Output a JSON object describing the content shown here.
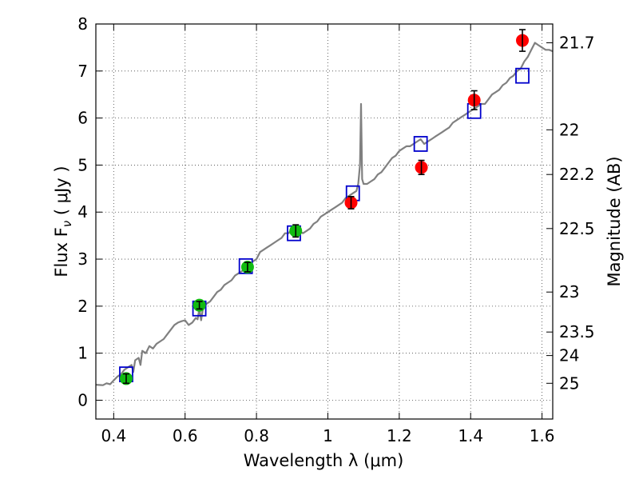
{
  "chart_data": {
    "type": "scatter",
    "xlabel": "Wavelength  λ (μm)",
    "ylabel": "Flux  F",
    "ylabel_sub": "ν",
    "ylabel_unit": "  ( μJy )",
    "ylabel_right": "Magnitude (AB)",
    "xlim": [
      0.35,
      1.63
    ],
    "ylim": [
      -0.4,
      8
    ],
    "grid": true,
    "x_ticks": [
      {
        "value": 0.4,
        "label": "0.4"
      },
      {
        "value": 0.6,
        "label": "0.6"
      },
      {
        "value": 0.8,
        "label": "0.8"
      },
      {
        "value": 1.0,
        "label": "1"
      },
      {
        "value": 1.2,
        "label": "1.2"
      },
      {
        "value": 1.4,
        "label": "1.4"
      },
      {
        "value": 1.6,
        "label": "1.6"
      }
    ],
    "y_ticks": [
      {
        "value": 0,
        "label": "0"
      },
      {
        "value": 1,
        "label": "1"
      },
      {
        "value": 2,
        "label": "2"
      },
      {
        "value": 3,
        "label": "3"
      },
      {
        "value": 4,
        "label": "4"
      },
      {
        "value": 5,
        "label": "5"
      },
      {
        "value": 6,
        "label": "6"
      },
      {
        "value": 7,
        "label": "7"
      },
      {
        "value": 8,
        "label": "8"
      }
    ],
    "right_ticks": [
      {
        "flux": 7.6,
        "label": "21.7"
      },
      {
        "flux": 5.75,
        "label": "22"
      },
      {
        "flux": 4.8,
        "label": "22.2"
      },
      {
        "flux": 3.65,
        "label": "22.5"
      },
      {
        "flux": 2.3,
        "label": "23"
      },
      {
        "flux": 1.45,
        "label": "23.5"
      },
      {
        "flux": 0.95,
        "label": "24"
      },
      {
        "flux": 0.36,
        "label": "25"
      }
    ],
    "series": [
      {
        "kind": "spectrum",
        "color": "#808080",
        "points": [
          [
            0.35,
            0.33
          ],
          [
            0.37,
            0.32
          ],
          [
            0.38,
            0.36
          ],
          [
            0.39,
            0.34
          ],
          [
            0.4,
            0.42
          ],
          [
            0.41,
            0.5
          ],
          [
            0.42,
            0.55
          ],
          [
            0.43,
            0.65
          ],
          [
            0.44,
            0.7
          ],
          [
            0.45,
            0.75
          ],
          [
            0.455,
            0.6
          ],
          [
            0.46,
            0.85
          ],
          [
            0.47,
            0.9
          ],
          [
            0.475,
            0.75
          ],
          [
            0.48,
            1.05
          ],
          [
            0.49,
            1.0
          ],
          [
            0.5,
            1.15
          ],
          [
            0.51,
            1.1
          ],
          [
            0.52,
            1.2
          ],
          [
            0.53,
            1.25
          ],
          [
            0.54,
            1.3
          ],
          [
            0.55,
            1.4
          ],
          [
            0.56,
            1.5
          ],
          [
            0.57,
            1.6
          ],
          [
            0.58,
            1.65
          ],
          [
            0.59,
            1.68
          ],
          [
            0.6,
            1.7
          ],
          [
            0.61,
            1.6
          ],
          [
            0.62,
            1.65
          ],
          [
            0.63,
            1.75
          ],
          [
            0.635,
            1.72
          ],
          [
            0.64,
            1.95
          ],
          [
            0.645,
            1.7
          ],
          [
            0.65,
            1.95
          ],
          [
            0.66,
            2.05
          ],
          [
            0.67,
            2.1
          ],
          [
            0.68,
            2.2
          ],
          [
            0.69,
            2.3
          ],
          [
            0.7,
            2.35
          ],
          [
            0.71,
            2.45
          ],
          [
            0.72,
            2.5
          ],
          [
            0.73,
            2.55
          ],
          [
            0.74,
            2.65
          ],
          [
            0.75,
            2.7
          ],
          [
            0.76,
            2.75
          ],
          [
            0.77,
            2.85
          ],
          [
            0.78,
            2.88
          ],
          [
            0.79,
            2.95
          ],
          [
            0.8,
            3.0
          ],
          [
            0.81,
            3.15
          ],
          [
            0.82,
            3.2
          ],
          [
            0.83,
            3.25
          ],
          [
            0.84,
            3.3
          ],
          [
            0.85,
            3.35
          ],
          [
            0.86,
            3.4
          ],
          [
            0.87,
            3.45
          ],
          [
            0.88,
            3.55
          ],
          [
            0.89,
            3.55
          ],
          [
            0.9,
            3.65
          ],
          [
            0.91,
            3.62
          ],
          [
            0.92,
            3.6
          ],
          [
            0.93,
            3.55
          ],
          [
            0.94,
            3.6
          ],
          [
            0.95,
            3.65
          ],
          [
            0.96,
            3.75
          ],
          [
            0.97,
            3.8
          ],
          [
            0.98,
            3.9
          ],
          [
            0.99,
            3.95
          ],
          [
            1.0,
            4.0
          ],
          [
            1.01,
            4.05
          ],
          [
            1.02,
            4.1
          ],
          [
            1.03,
            4.15
          ],
          [
            1.04,
            4.2
          ],
          [
            1.05,
            4.3
          ],
          [
            1.06,
            4.35
          ],
          [
            1.07,
            4.4
          ],
          [
            1.08,
            4.45
          ],
          [
            1.085,
            4.6
          ],
          [
            1.09,
            5.0
          ],
          [
            1.093,
            6.3
          ],
          [
            1.096,
            4.7
          ],
          [
            1.1,
            4.6
          ],
          [
            1.11,
            4.6
          ],
          [
            1.12,
            4.65
          ],
          [
            1.13,
            4.7
          ],
          [
            1.14,
            4.8
          ],
          [
            1.15,
            4.85
          ],
          [
            1.16,
            4.95
          ],
          [
            1.17,
            5.05
          ],
          [
            1.18,
            5.15
          ],
          [
            1.19,
            5.2
          ],
          [
            1.2,
            5.3
          ],
          [
            1.21,
            5.35
          ],
          [
            1.22,
            5.4
          ],
          [
            1.23,
            5.4
          ],
          [
            1.24,
            5.45
          ],
          [
            1.25,
            5.5
          ],
          [
            1.26,
            5.55
          ],
          [
            1.27,
            5.45
          ],
          [
            1.28,
            5.5
          ],
          [
            1.29,
            5.55
          ],
          [
            1.3,
            5.6
          ],
          [
            1.31,
            5.65
          ],
          [
            1.32,
            5.7
          ],
          [
            1.33,
            5.75
          ],
          [
            1.34,
            5.8
          ],
          [
            1.35,
            5.9
          ],
          [
            1.36,
            5.95
          ],
          [
            1.37,
            6.0
          ],
          [
            1.38,
            6.05
          ],
          [
            1.39,
            6.1
          ],
          [
            1.4,
            6.15
          ],
          [
            1.41,
            6.2
          ],
          [
            1.42,
            6.25
          ],
          [
            1.43,
            6.3
          ],
          [
            1.44,
            6.3
          ],
          [
            1.45,
            6.4
          ],
          [
            1.46,
            6.5
          ],
          [
            1.47,
            6.55
          ],
          [
            1.48,
            6.6
          ],
          [
            1.49,
            6.7
          ],
          [
            1.5,
            6.75
          ],
          [
            1.51,
            6.85
          ],
          [
            1.52,
            6.9
          ],
          [
            1.53,
            7.0
          ],
          [
            1.54,
            7.05
          ],
          [
            1.55,
            7.2
          ],
          [
            1.56,
            7.3
          ],
          [
            1.57,
            7.45
          ],
          [
            1.58,
            7.6
          ],
          [
            1.59,
            7.55
          ],
          [
            1.6,
            7.5
          ],
          [
            1.61,
            7.45
          ],
          [
            1.62,
            7.45
          ],
          [
            1.63,
            7.42
          ]
        ]
      },
      {
        "kind": "model-bands",
        "color": "#0000cc",
        "points": [
          [
            0.435,
            0.55
          ],
          [
            0.64,
            1.95
          ],
          [
            0.77,
            2.85
          ],
          [
            0.905,
            3.55
          ],
          [
            1.07,
            4.4
          ],
          [
            1.26,
            5.45
          ],
          [
            1.41,
            6.15
          ],
          [
            1.545,
            6.9
          ]
        ]
      },
      {
        "kind": "observed-optical",
        "color": "#11bb11",
        "points": [
          {
            "x": 0.435,
            "y": 0.46,
            "err": 0.1
          },
          {
            "x": 0.64,
            "y": 2.02,
            "err": 0.08
          },
          {
            "x": 0.775,
            "y": 2.83,
            "err": 0.1
          },
          {
            "x": 0.91,
            "y": 3.6,
            "err": 0.13
          }
        ]
      },
      {
        "kind": "observed-nir",
        "color": "#ff0000",
        "points": [
          {
            "x": 1.065,
            "y": 4.2,
            "err": 0.13
          },
          {
            "x": 1.262,
            "y": 4.95,
            "err": 0.15
          },
          {
            "x": 1.41,
            "y": 6.38,
            "err": 0.2
          },
          {
            "x": 1.545,
            "y": 7.65,
            "err": 0.23
          }
        ]
      }
    ]
  }
}
